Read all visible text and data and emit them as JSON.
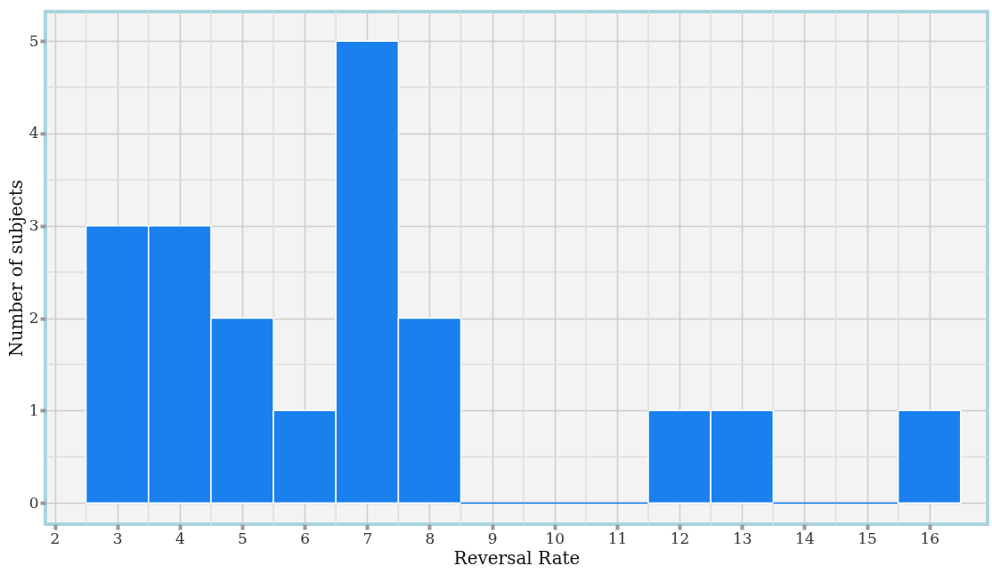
{
  "chart_data": {
    "type": "histogram",
    "xlabel": "Reversal Rate",
    "ylabel": "Number of subjects",
    "bins": [
      2.5,
      3.5,
      4.5,
      5.5,
      6.5,
      7.5,
      8.5,
      9.5,
      10.5,
      11.5,
      12.5,
      13.5,
      14.5,
      15.5,
      16.5
    ],
    "values": [
      3,
      3,
      2,
      1,
      5,
      2,
      0,
      0,
      0,
      1,
      1,
      0,
      0,
      1
    ],
    "color": "#1a80ee",
    "xlim": [
      1.85,
      16.93
    ],
    "xticks": [
      2,
      3,
      4,
      5,
      6,
      7,
      8,
      9,
      10,
      11,
      12,
      13,
      14,
      15,
      16
    ],
    "ylim": [
      -0.23,
      5.32
    ],
    "yticks": [
      0,
      1,
      2,
      3,
      4,
      5
    ],
    "grid": true
  }
}
